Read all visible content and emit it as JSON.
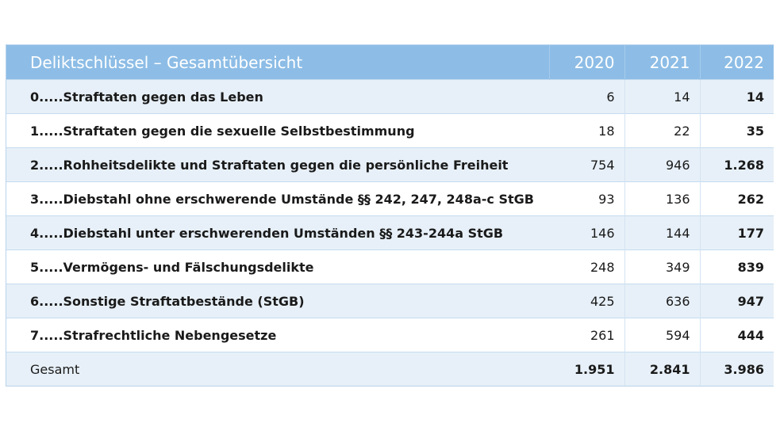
{
  "table": {
    "header": {
      "title": "Deliktschlüssel – Gesamtübersicht",
      "years": [
        "2020",
        "2021",
        "2022"
      ]
    },
    "rows": [
      {
        "label": "0.....Straftaten gegen das Leben",
        "v2020": "6",
        "v2021": "14",
        "v2022": "14"
      },
      {
        "label": "1.....Straftaten gegen die sexuelle Selbstbestimmung",
        "v2020": "18",
        "v2021": "22",
        "v2022": "35"
      },
      {
        "label": "2.....Rohheitsdelikte und Straftaten gegen die persönliche Freiheit",
        "v2020": "754",
        "v2021": "946",
        "v2022": "1.268"
      },
      {
        "label": "3.....Diebstahl ohne erschwerende Umstände §§ 242, 247, 248a-c StGB",
        "v2020": "93",
        "v2021": "136",
        "v2022": "262"
      },
      {
        "label": "4.....Diebstahl unter erschwerenden Umständen §§ 243-244a StGB",
        "v2020": "146",
        "v2021": "144",
        "v2022": "177"
      },
      {
        "label": "5.....Vermögens- und Fälschungsdelikte",
        "v2020": "248",
        "v2021": "349",
        "v2022": "839"
      },
      {
        "label": "6.....Sonstige Straftatbestände (StGB)",
        "v2020": "425",
        "v2021": "636",
        "v2022": "947"
      },
      {
        "label": "7.....Strafrechtliche Nebengesetze",
        "v2020": "261",
        "v2021": "594",
        "v2022": "444"
      }
    ],
    "total": {
      "label": "Gesamt",
      "v2020": "1.951",
      "v2021": "2.841",
      "v2022": "3.986"
    }
  }
}
